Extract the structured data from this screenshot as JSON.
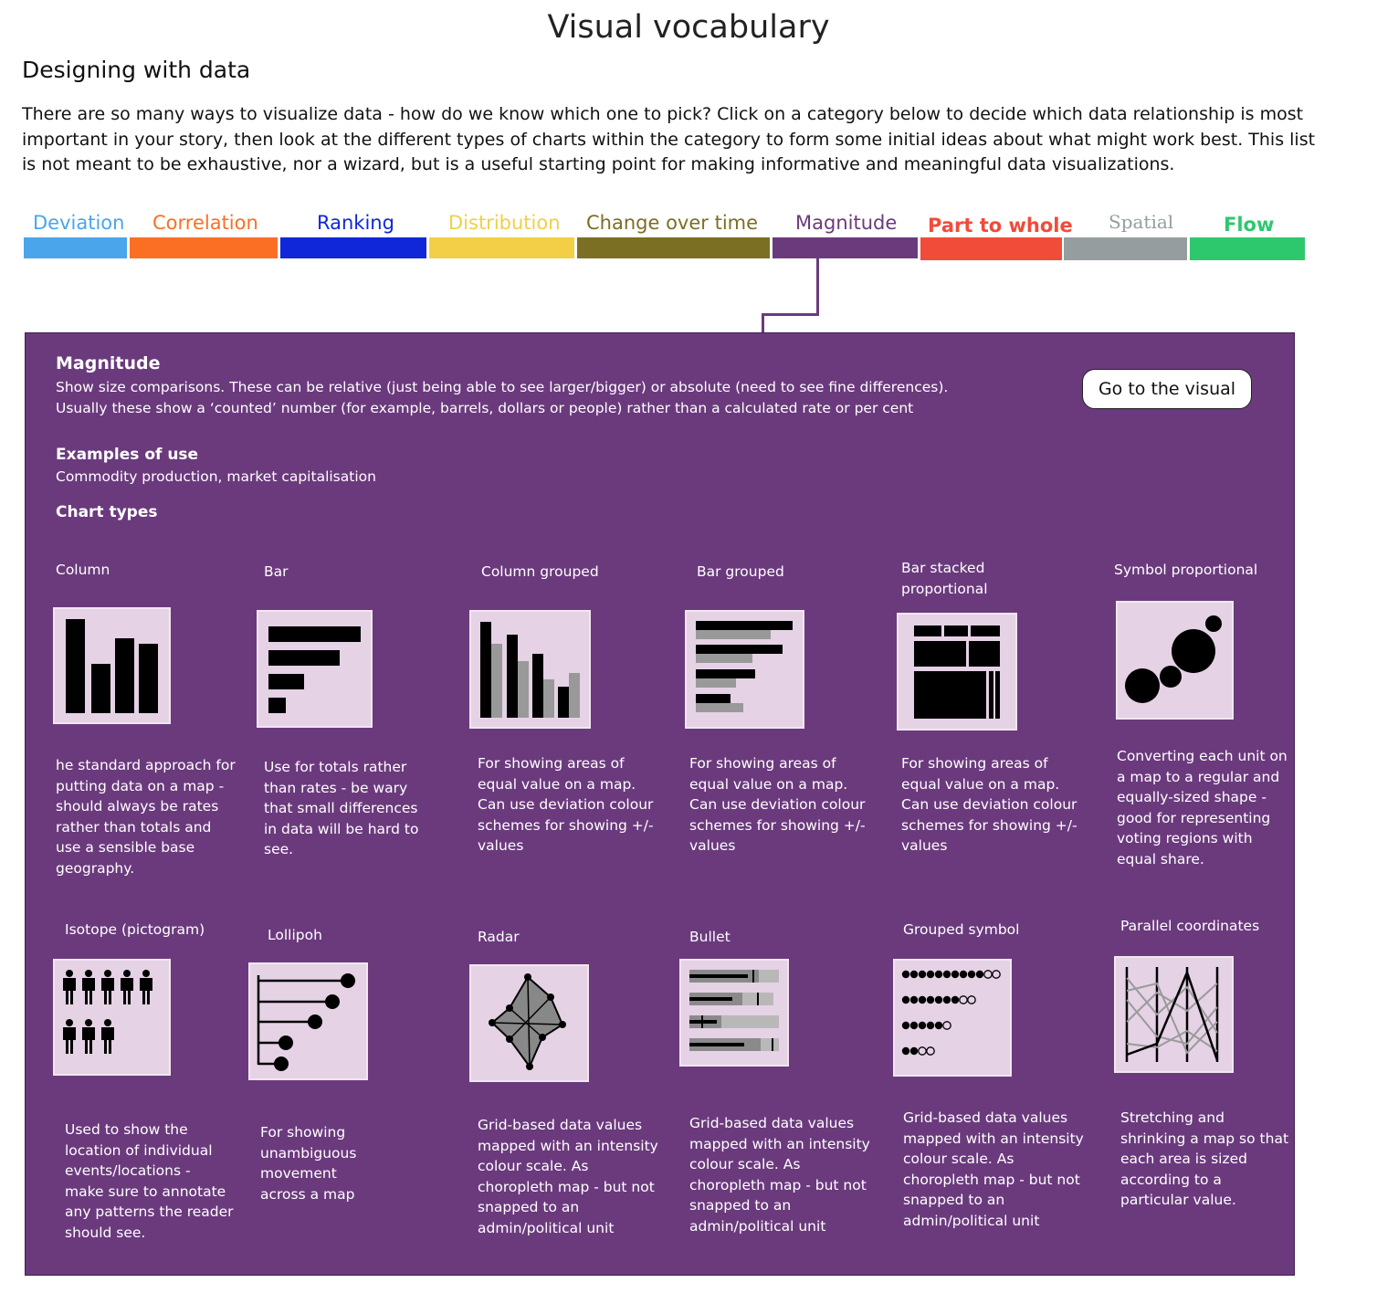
{
  "header": {
    "title": "Visual vocabulary",
    "subtitle": "Designing with data",
    "intro": "There are so many ways to visualize data - how do we know which one to pick? Click on a category below to decide which data relationship is most important in your story, then look at the different types of charts within the category to form some initial ideas about what might work best. This list is not meant to be exhaustive, nor a wizard, but is a useful starting point for making informative and meaningful data visualizations."
  },
  "categories": [
    {
      "label": "Deviation",
      "color": "#4aa5eb"
    },
    {
      "label": "Correlation",
      "color": "#fb6f24"
    },
    {
      "label": "Ranking",
      "color": "#0f27d8"
    },
    {
      "label": "Distribution",
      "color": "#f2cf46"
    },
    {
      "label": "Change over time",
      "color": "#7a6f23"
    },
    {
      "label": "Magnitude",
      "color": "#6b3a7d"
    },
    {
      "label": "Part to whole",
      "color": "#f14b3a"
    },
    {
      "label": "Spatial",
      "color": "#959d9f"
    },
    {
      "label": "Flow",
      "color": "#2dc86e"
    }
  ],
  "panel": {
    "title": "Magnitude",
    "description_1": "Show size comparisons. These can be relative (just being able to see larger/bigger) or absolute (need to see fine differences).",
    "description_2": "Usually these show a ‘counted’ number (for example, barrels, dollars or people) rather than a calculated rate or per cent",
    "examples_heading": "Examples of use",
    "examples": "Commodity production, market capitalisation",
    "chart_types_heading": "Chart types",
    "goto_button": "Go to the visual",
    "cards": [
      {
        "name": "Column",
        "icon": "column-chart-icon",
        "desc": "he standard approach for putting data on a map - should always be rates rather than totals and use a sensible base geography."
      },
      {
        "name": "Bar",
        "icon": "bar-chart-icon",
        "desc": "Use for totals rather than rates - be wary that small differences in data will be hard to see."
      },
      {
        "name": "Column grouped",
        "icon": "column-grouped-chart-icon",
        "desc": "For showing areas of equal value on a map. Can use deviation colour schemes for showing +/- values"
      },
      {
        "name": "Bar grouped",
        "icon": "bar-grouped-chart-icon",
        "desc": "For showing areas of equal value on a map. Can use deviation colour schemes for showing +/- values"
      },
      {
        "name": "Bar stacked proportional",
        "icon": "bar-stacked-proportional-chart-icon",
        "desc": "For showing areas of equal value on a map. Can use deviation colour schemes for showing +/- values"
      },
      {
        "name": "Symbol proportional",
        "icon": "symbol-proportional-chart-icon",
        "desc": "Converting each unit on a map to a regular and equally-sized shape - good for representing voting regions with equal share."
      },
      {
        "name": "Isotope (pictogram)",
        "icon": "isotope-pictogram-icon",
        "desc": "Used to show the location of individual events/locations - make sure to annotate any patterns the reader should see."
      },
      {
        "name": "Lollipoh",
        "icon": "lollipop-chart-icon",
        "desc": "For showing unambiguous movement across a map"
      },
      {
        "name": "Radar",
        "icon": "radar-chart-icon",
        "desc": "Grid-based data values mapped with an intensity colour scale. As choropleth map - but not snapped to an admin/political unit"
      },
      {
        "name": "Bullet",
        "icon": "bullet-chart-icon",
        "desc": "Grid-based data values mapped with an intensity colour scale. As choropleth map - but not snapped to an admin/political unit"
      },
      {
        "name": "Grouped symbol",
        "icon": "grouped-symbol-chart-icon",
        "desc": "Grid-based data values mapped with an intensity colour scale. As choropleth map - but not snapped to an admin/political unit"
      },
      {
        "name": "Parallel coordinates",
        "icon": "parallel-coordinates-chart-icon",
        "desc": "Stretching and shrinking a map so that each area is sized according to a particular value."
      }
    ]
  }
}
